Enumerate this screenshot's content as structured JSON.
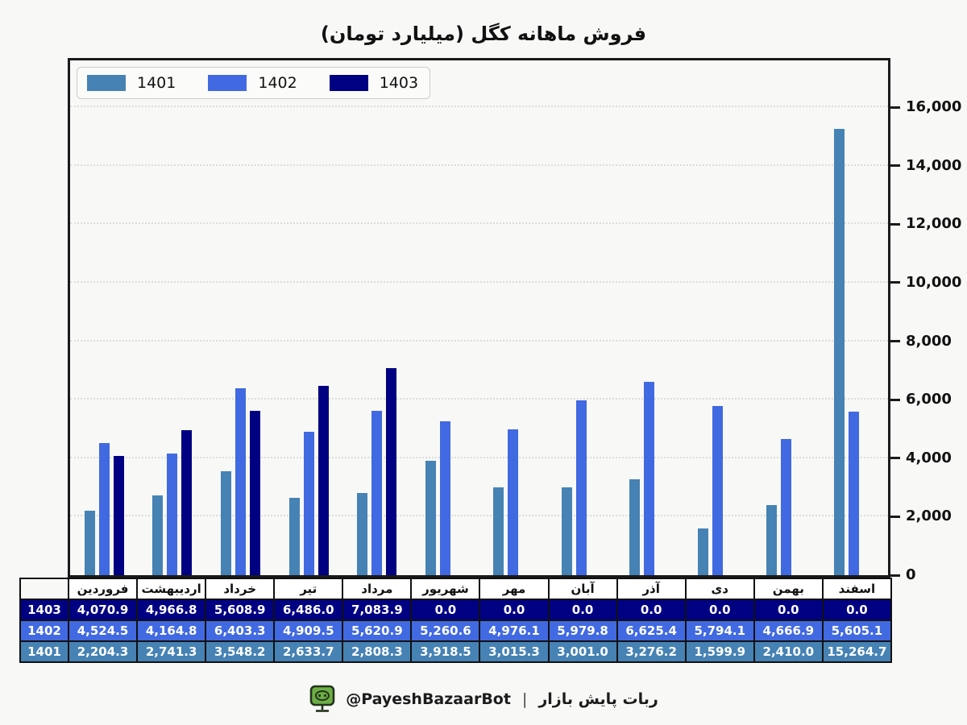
{
  "title": "فروش ماهانه کگل (میلیارد تومان)",
  "chart_data": {
    "type": "bar",
    "title": "فروش ماهانه کگل (میلیارد تومان)",
    "categories": [
      "فروردین",
      "اردیبهشت",
      "خرداد",
      "تیر",
      "مرداد",
      "شهریور",
      "مهر",
      "آبان",
      "آذر",
      "دی",
      "بهمن",
      "اسفند"
    ],
    "series": [
      {
        "name": "1401",
        "color": "#4682b4",
        "values": [
          2204.3,
          2741.3,
          3548.2,
          2633.7,
          2808.3,
          3918.5,
          3015.3,
          3001.0,
          3276.2,
          1599.9,
          2410.0,
          15264.7
        ]
      },
      {
        "name": "1402",
        "color": "#4169e1",
        "values": [
          4524.5,
          4164.8,
          6403.3,
          4909.5,
          5620.9,
          5260.6,
          4976.1,
          5979.8,
          6625.4,
          5794.1,
          4666.9,
          5605.1
        ]
      },
      {
        "name": "1403",
        "color": "#000082",
        "values": [
          4070.9,
          4966.8,
          5608.9,
          6486.0,
          7083.9,
          0.0,
          0.0,
          0.0,
          0.0,
          0.0,
          0.0,
          0.0
        ]
      }
    ],
    "xlabel": "",
    "ylabel": "",
    "ylim": [
      0,
      17600
    ],
    "yticks": [
      0,
      2000,
      4000,
      6000,
      8000,
      10000,
      12000,
      14000,
      16000
    ],
    "ytick_labels": [
      "0",
      "2,000",
      "4,000",
      "6,000",
      "8,000",
      "10,000",
      "12,000",
      "14,000",
      "16,000"
    ],
    "grid": "horizontal-dotted",
    "legend_position": "top-left",
    "legend_order": [
      "1401",
      "1402",
      "1403"
    ]
  },
  "table": {
    "month_headers": [
      "فروردین",
      "اردیبهشت",
      "خرداد",
      "تیر",
      "مرداد",
      "شهریور",
      "مهر",
      "آبان",
      "آذر",
      "دی",
      "بهمن",
      "اسفند"
    ],
    "rows": [
      {
        "label": "1403",
        "color": "#000082",
        "values": [
          "4,070.9",
          "4,966.8",
          "5,608.9",
          "6,486.0",
          "7,083.9",
          "0.0",
          "0.0",
          "0.0",
          "0.0",
          "0.0",
          "0.0",
          "0.0"
        ]
      },
      {
        "label": "1402",
        "color": "#4169e1",
        "values": [
          "4,524.5",
          "4,164.8",
          "6,403.3",
          "4,909.5",
          "5,620.9",
          "5,260.6",
          "4,976.1",
          "5,979.8",
          "6,625.4",
          "5,794.1",
          "4,666.9",
          "5,605.1"
        ]
      },
      {
        "label": "1401",
        "color": "#4682b4",
        "values": [
          "2,204.3",
          "2,741.3",
          "3,548.2",
          "2,633.7",
          "2,808.3",
          "3,918.5",
          "3,015.3",
          "3,001.0",
          "3,276.2",
          "1,599.9",
          "2,410.0",
          "15,264.7"
        ]
      }
    ]
  },
  "footer": {
    "handle": "@PayeshBazaarBot",
    "separator": "|",
    "caption": "ربات پایش بازار",
    "icon": "robot-monitor-icon",
    "icon_color": "#6cae45"
  },
  "colors": {
    "background": "#f8f8f6",
    "frame": "#1a1a1a",
    "gridline": "#dcdcda",
    "series_1401": "#4682b4",
    "series_1402": "#4169e1",
    "series_1403": "#000082"
  }
}
